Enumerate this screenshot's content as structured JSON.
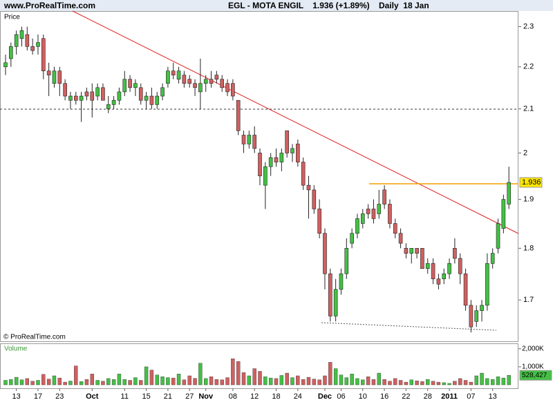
{
  "header": {
    "site": "www.ProRealTime.com"
  },
  "chart_data": [
    {
      "type": "candlestick",
      "title": "EGL - MOTA ENGIL    1.936 (+1.89%)    Daily  18 Jan",
      "panel_label": "Price",
      "source": "© ProRealTime.com",
      "log_scale": true,
      "ylim": [
        1.624,
        2.34
      ],
      "yticks": [
        1.7,
        1.8,
        1.9,
        2,
        2.1,
        2.2,
        2.3
      ],
      "up_color": "#44c044",
      "down_color": "#d06060",
      "categories": [
        null,
        null,
        "13",
        null,
        null,
        null,
        "17",
        null,
        null,
        null,
        "23",
        null,
        null,
        null,
        null,
        null,
        "Oct",
        null,
        null,
        null,
        null,
        null,
        "11",
        null,
        null,
        null,
        "15",
        null,
        null,
        null,
        "21",
        null,
        null,
        null,
        "27",
        null,
        null,
        "Nov",
        null,
        null,
        null,
        null,
        "08",
        null,
        null,
        null,
        "12",
        null,
        null,
        null,
        "18",
        null,
        null,
        null,
        "24",
        null,
        null,
        null,
        null,
        "Dec",
        null,
        null,
        "06",
        null,
        null,
        null,
        "10",
        null,
        null,
        null,
        "16",
        null,
        null,
        null,
        "22",
        null,
        null,
        null,
        "28",
        null,
        null,
        null,
        "2011",
        null,
        null,
        null,
        "07",
        null,
        null,
        null,
        "13",
        null,
        null,
        null
      ],
      "open": [
        2.2,
        2.22,
        2.25,
        2.27,
        2.28,
        2.25,
        2.25,
        2.27,
        2.19,
        2.16,
        2.19,
        2.16,
        2.12,
        2.13,
        2.12,
        2.14,
        2.14,
        2.13,
        2.15,
        2.1,
        2.11,
        2.12,
        2.14,
        2.17,
        2.15,
        2.15,
        2.12,
        2.13,
        2.11,
        2.13,
        2.16,
        2.19,
        2.17,
        2.18,
        2.17,
        2.16,
        2.14,
        2.16,
        2.17,
        2.18,
        2.17,
        2.16,
        2.16,
        2.12,
        2.04,
        2.02,
        2.04,
        2.0,
        1.93,
        1.97,
        1.99,
        1.98,
        2.05,
        2.0,
        2.02,
        1.98,
        1.93,
        1.92,
        1.88,
        1.83,
        1.75,
        1.67,
        1.72,
        1.75,
        1.81,
        1.83,
        1.85,
        1.88,
        1.88,
        1.87,
        1.92,
        1.89,
        1.85,
        1.83,
        1.8,
        1.79,
        1.8,
        1.8,
        1.76,
        1.77,
        1.74,
        1.74,
        1.75,
        1.8,
        1.78,
        1.75,
        1.69,
        1.66,
        1.68,
        1.69,
        1.77,
        1.8,
        1.84,
        1.89
      ],
      "high": [
        2.23,
        2.26,
        2.29,
        2.3,
        2.3,
        2.27,
        2.28,
        2.28,
        2.21,
        2.2,
        2.2,
        2.17,
        2.14,
        2.14,
        2.14,
        2.15,
        2.16,
        2.16,
        2.16,
        2.13,
        2.13,
        2.15,
        2.19,
        2.18,
        2.17,
        2.16,
        2.14,
        2.15,
        2.14,
        2.16,
        2.2,
        2.21,
        2.2,
        2.19,
        2.18,
        2.17,
        2.22,
        2.18,
        2.19,
        2.19,
        2.18,
        2.17,
        2.17,
        2.12,
        2.05,
        2.05,
        2.06,
        2.01,
        1.98,
        2.0,
        2.01,
        2.01,
        2.05,
        2.02,
        2.03,
        1.99,
        1.95,
        1.93,
        1.9,
        1.84,
        1.76,
        1.74,
        1.76,
        1.82,
        1.84,
        1.87,
        1.88,
        1.89,
        1.9,
        1.92,
        1.93,
        1.9,
        1.86,
        1.84,
        1.81,
        1.8,
        1.8,
        1.8,
        1.78,
        1.78,
        1.75,
        1.76,
        1.78,
        1.82,
        1.79,
        1.76,
        1.7,
        1.69,
        1.7,
        1.79,
        1.8,
        1.86,
        1.91,
        1.97
      ],
      "low": [
        2.18,
        2.2,
        2.23,
        2.25,
        2.24,
        2.23,
        2.23,
        2.17,
        2.13,
        2.15,
        2.13,
        2.12,
        2.1,
        2.11,
        2.07,
        2.12,
        2.08,
        2.12,
        2.12,
        2.09,
        2.1,
        2.11,
        2.13,
        2.14,
        2.13,
        2.11,
        2.1,
        2.1,
        2.1,
        2.12,
        2.15,
        2.17,
        2.16,
        2.15,
        2.15,
        2.13,
        2.1,
        2.14,
        2.15,
        2.16,
        2.14,
        2.13,
        2.12,
        2.04,
        2.0,
        2.01,
        2.0,
        1.93,
        1.88,
        1.95,
        1.97,
        1.96,
        1.99,
        1.98,
        1.97,
        1.92,
        1.86,
        1.87,
        1.82,
        1.72,
        1.66,
        1.66,
        1.71,
        1.74,
        1.8,
        1.82,
        1.84,
        1.86,
        1.85,
        1.86,
        1.88,
        1.84,
        1.82,
        1.8,
        1.78,
        1.77,
        1.78,
        1.76,
        1.75,
        1.73,
        1.72,
        1.73,
        1.74,
        1.77,
        1.73,
        1.68,
        1.64,
        1.65,
        1.66,
        1.68,
        1.76,
        1.79,
        1.83,
        1.88
      ],
      "close": [
        2.21,
        2.25,
        2.28,
        2.29,
        2.25,
        2.24,
        2.26,
        2.19,
        2.18,
        2.19,
        2.16,
        2.13,
        2.13,
        2.12,
        2.13,
        2.13,
        2.12,
        2.15,
        2.12,
        2.11,
        2.12,
        2.14,
        2.17,
        2.15,
        2.16,
        2.12,
        2.13,
        2.11,
        2.13,
        2.15,
        2.19,
        2.18,
        2.19,
        2.16,
        2.16,
        2.15,
        2.16,
        2.17,
        2.16,
        2.17,
        2.15,
        2.14,
        2.13,
        2.05,
        2.02,
        2.04,
        2.01,
        1.95,
        1.97,
        1.99,
        1.98,
        2.0,
        2.0,
        2.01,
        1.98,
        1.93,
        1.92,
        1.88,
        1.83,
        1.75,
        1.67,
        1.72,
        1.75,
        1.8,
        1.83,
        1.86,
        1.87,
        1.87,
        1.86,
        1.89,
        1.89,
        1.85,
        1.83,
        1.81,
        1.79,
        1.8,
        1.79,
        1.76,
        1.77,
        1.74,
        1.73,
        1.75,
        1.77,
        1.78,
        1.75,
        1.69,
        1.65,
        1.68,
        1.69,
        1.77,
        1.79,
        1.85,
        1.9,
        1.936
      ]
    },
    {
      "type": "bar",
      "panel_label": "Volume",
      "ylim": [
        0,
        2300000
      ],
      "yticks": [
        {
          "value": 1000000,
          "label": "1,000K"
        },
        {
          "value": 2000000,
          "label": "2,000K"
        }
      ],
      "last_value_label": {
        "value": 528427,
        "label": "528,427"
      },
      "values": [
        250000,
        300000,
        420000,
        280000,
        350000,
        200000,
        250000,
        580000,
        320000,
        500000,
        380000,
        150000,
        210000,
        1050000,
        180000,
        300000,
        600000,
        250000,
        200000,
        350000,
        300000,
        600000,
        300000,
        250000,
        400000,
        250000,
        1000000,
        820000,
        550000,
        450000,
        400000,
        380000,
        600000,
        280000,
        500000,
        360000,
        1200000,
        350000,
        450000,
        300000,
        280000,
        400000,
        1450000,
        1300000,
        680000,
        500000,
        900000,
        750000,
        450000,
        380000,
        350000,
        520000,
        650000,
        400000,
        500000,
        300000,
        420000,
        320000,
        280000,
        500000,
        1250000,
        900000,
        550000,
        400000,
        600000,
        350000,
        280000,
        450000,
        300000,
        650000,
        300000,
        200000,
        350000,
        250000,
        150000,
        280000,
        220000,
        180000,
        300000,
        200000,
        150000,
        120000,
        80000,
        200000,
        350000,
        250000,
        150000,
        500000,
        650000,
        350000,
        300000,
        450000,
        380000,
        528427
      ]
    }
  ]
}
